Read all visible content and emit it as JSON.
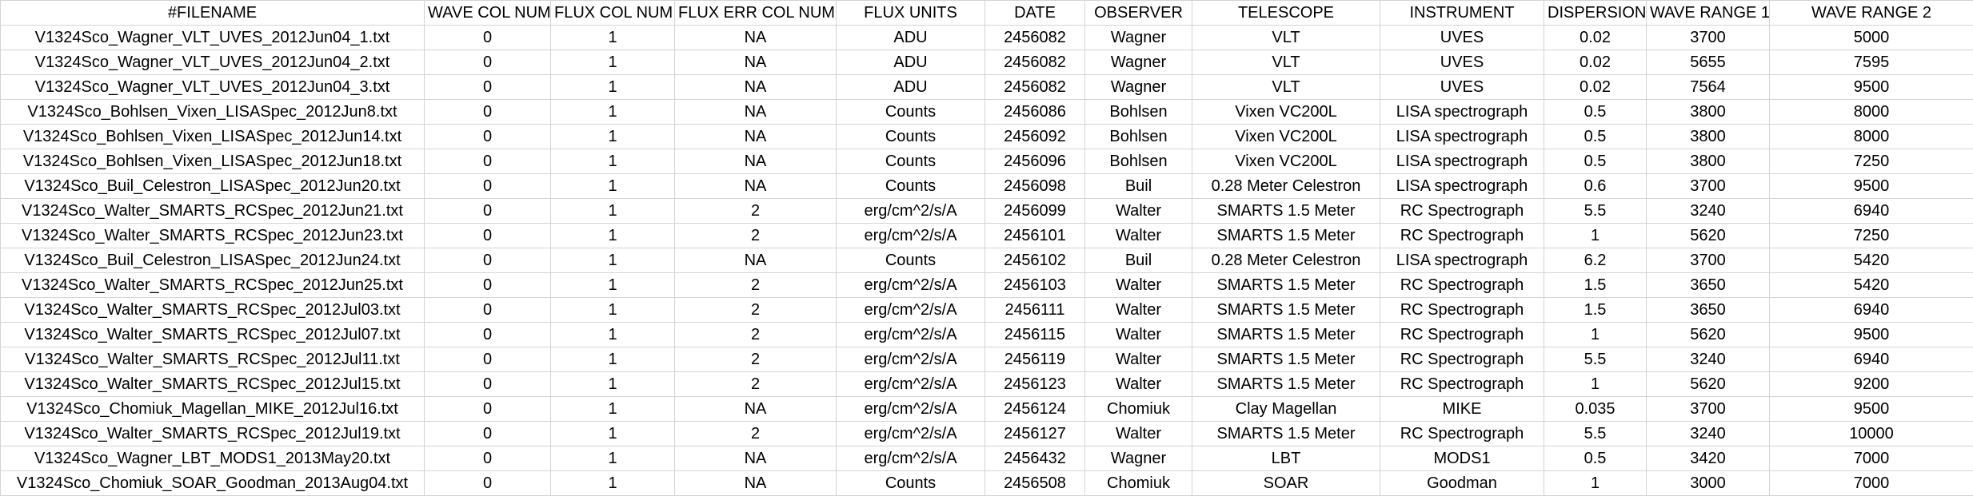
{
  "sheet": {
    "headers": [
      "#FILENAME",
      "WAVE COL NUM",
      "FLUX COL NUM",
      "FLUX ERR COL NUM",
      "FLUX UNITS",
      "DATE",
      "OBSERVER",
      "TELESCOPE",
      "INSTRUMENT",
      "DISPERSION",
      "WAVE RANGE 1",
      "WAVE RANGE 2"
    ],
    "rows": [
      [
        "V1324Sco_Wagner_VLT_UVES_2012Jun04_1.txt",
        "0",
        "1",
        "NA",
        "ADU",
        "2456082",
        "Wagner",
        "VLT",
        "UVES",
        "0.02",
        "3700",
        "5000"
      ],
      [
        "V1324Sco_Wagner_VLT_UVES_2012Jun04_2.txt",
        "0",
        "1",
        "NA",
        "ADU",
        "2456082",
        "Wagner",
        "VLT",
        "UVES",
        "0.02",
        "5655",
        "7595"
      ],
      [
        "V1324Sco_Wagner_VLT_UVES_2012Jun04_3.txt",
        "0",
        "1",
        "NA",
        "ADU",
        "2456082",
        "Wagner",
        "VLT",
        "UVES",
        "0.02",
        "7564",
        "9500"
      ],
      [
        "V1324Sco_Bohlsen_Vixen_LISASpec_2012Jun8.txt",
        "0",
        "1",
        "NA",
        "Counts",
        "2456086",
        "Bohlsen",
        "Vixen VC200L",
        "LISA spectrograph",
        "0.5",
        "3800",
        "8000"
      ],
      [
        "V1324Sco_Bohlsen_Vixen_LISASpec_2012Jun14.txt",
        "0",
        "1",
        "NA",
        "Counts",
        "2456092",
        "Bohlsen",
        "Vixen VC200L",
        "LISA spectrograph",
        "0.5",
        "3800",
        "8000"
      ],
      [
        "V1324Sco_Bohlsen_Vixen_LISASpec_2012Jun18.txt",
        "0",
        "1",
        "NA",
        "Counts",
        "2456096",
        "Bohlsen",
        "Vixen VC200L",
        "LISA spectrograph",
        "0.5",
        "3800",
        "7250"
      ],
      [
        "V1324Sco_Buil_Celestron_LISASpec_2012Jun20.txt",
        "0",
        "1",
        "NA",
        "Counts",
        "2456098",
        "Buil",
        "0.28 Meter Celestron",
        "LISA spectrograph",
        "0.6",
        "3700",
        "9500"
      ],
      [
        "V1324Sco_Walter_SMARTS_RCSpec_2012Jun21.txt",
        "0",
        "1",
        "2",
        "erg/cm^2/s/A",
        "2456099",
        "Walter",
        "SMARTS 1.5 Meter",
        "RC Spectrograph",
        "5.5",
        "3240",
        "6940"
      ],
      [
        "V1324Sco_Walter_SMARTS_RCSpec_2012Jun23.txt",
        "0",
        "1",
        "2",
        "erg/cm^2/s/A",
        "2456101",
        "Walter",
        "SMARTS 1.5 Meter",
        "RC Spectrograph",
        "1",
        "5620",
        "7250"
      ],
      [
        "V1324Sco_Buil_Celestron_LISASpec_2012Jun24.txt",
        "0",
        "1",
        "NA",
        "Counts",
        "2456102",
        "Buil",
        "0.28 Meter Celestron",
        "LISA spectrograph",
        "6.2",
        "3700",
        "5420"
      ],
      [
        "V1324Sco_Walter_SMARTS_RCSpec_2012Jun25.txt",
        "0",
        "1",
        "2",
        "erg/cm^2/s/A",
        "2456103",
        "Walter",
        "SMARTS 1.5 Meter",
        "RC Spectrograph",
        "1.5",
        "3650",
        "5420"
      ],
      [
        "V1324Sco_Walter_SMARTS_RCSpec_2012Jul03.txt",
        "0",
        "1",
        "2",
        "erg/cm^2/s/A",
        "2456111",
        "Walter",
        "SMARTS 1.5 Meter",
        "RC Spectrograph",
        "1.5",
        "3650",
        "6940"
      ],
      [
        "V1324Sco_Walter_SMARTS_RCSpec_2012Jul07.txt",
        "0",
        "1",
        "2",
        "erg/cm^2/s/A",
        "2456115",
        "Walter",
        "SMARTS 1.5 Meter",
        "RC Spectrograph",
        "1",
        "5620",
        "9500"
      ],
      [
        "V1324Sco_Walter_SMARTS_RCSpec_2012Jul11.txt",
        "0",
        "1",
        "2",
        "erg/cm^2/s/A",
        "2456119",
        "Walter",
        "SMARTS 1.5 Meter",
        "RC Spectrograph",
        "5.5",
        "3240",
        "6940"
      ],
      [
        "V1324Sco_Walter_SMARTS_RCSpec_2012Jul15.txt",
        "0",
        "1",
        "2",
        "erg/cm^2/s/A",
        "2456123",
        "Walter",
        "SMARTS 1.5 Meter",
        "RC Spectrograph",
        "1",
        "5620",
        "9200"
      ],
      [
        "V1324Sco_Chomiuk_Magellan_MIKE_2012Jul16.txt",
        "0",
        "1",
        "NA",
        "erg/cm^2/s/A",
        "2456124",
        "Chomiuk",
        "Clay Magellan",
        "MIKE",
        "0.035",
        "3700",
        "9500"
      ],
      [
        "V1324Sco_Walter_SMARTS_RCSpec_2012Jul19.txt",
        "0",
        "1",
        "2",
        "erg/cm^2/s/A",
        "2456127",
        "Walter",
        "SMARTS 1.5 Meter",
        "RC Spectrograph",
        "5.5",
        "3240",
        "10000"
      ],
      [
        "V1324Sco_Wagner_LBT_MODS1_2013May20.txt",
        "0",
        "1",
        "NA",
        "erg/cm^2/s/A",
        "2456432",
        "Wagner",
        "LBT",
        "MODS1",
        "0.5",
        "3420",
        "7000"
      ],
      [
        "V1324Sco_Chomiuk_SOAR_Goodman_2013Aug04.txt",
        "0",
        "1",
        "NA",
        "Counts",
        "2456508",
        "Chomiuk",
        "SOAR",
        "Goodman",
        "1",
        "3000",
        "7000"
      ]
    ]
  }
}
